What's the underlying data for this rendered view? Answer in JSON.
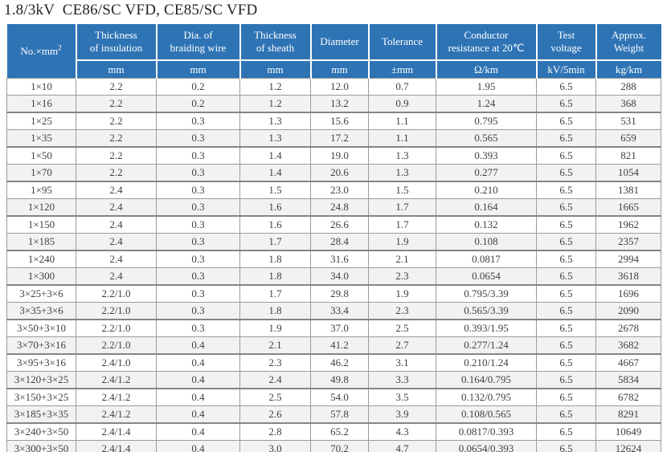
{
  "page": {
    "title": "1.8/3kV  CE86/SC VFD, CE85/SC VFD"
  },
  "colors": {
    "header_bg": "#2e74b5",
    "header_text": "#ffffff",
    "row_alt_bg": "#f2f2f2",
    "border": "#9b9b9b",
    "body_text": "#3f3f3f"
  },
  "table": {
    "header": {
      "spec_label": "No.×mm",
      "spec_sup": "2",
      "columns": [
        {
          "line1": "Thickness",
          "line2": "of insulation",
          "unit": "mm"
        },
        {
          "line1": "Dia. of",
          "line2": "braiding wire",
          "unit": "mm"
        },
        {
          "line1": "Thickness",
          "line2": "of sheath",
          "unit": "mm"
        },
        {
          "line1": "Diameter",
          "line2": "",
          "unit": "mm"
        },
        {
          "line1": "Tolerance",
          "line2": "",
          "unit": "±mm"
        },
        {
          "line1": "Conductor",
          "line2": "resistance at 20℃",
          "unit": "Ω/km"
        },
        {
          "line1": "Test",
          "line2": "voltage",
          "unit": "kV/5min"
        },
        {
          "line1": "Approx.",
          "line2": "Weight",
          "unit": "kg/km"
        }
      ]
    },
    "rows": [
      [
        "1×10",
        "2.2",
        "0.2",
        "1.2",
        "12.0",
        "0.7",
        "1.95",
        "6.5",
        "288"
      ],
      [
        "1×16",
        "2.2",
        "0.2",
        "1.2",
        "13.2",
        "0.9",
        "1.24",
        "6.5",
        "368"
      ],
      [
        "1×25",
        "2.2",
        "0.3",
        "1.3",
        "15.6",
        "1.1",
        "0.795",
        "6.5",
        "531"
      ],
      [
        "1×35",
        "2.2",
        "0.3",
        "1.3",
        "17.2",
        "1.1",
        "0.565",
        "6.5",
        "659"
      ],
      [
        "1×50",
        "2.2",
        "0.3",
        "1.4",
        "19.0",
        "1.3",
        "0.393",
        "6.5",
        "821"
      ],
      [
        "1×70",
        "2.2",
        "0.3",
        "1.4",
        "20.6",
        "1.3",
        "0.277",
        "6.5",
        "1054"
      ],
      [
        "1×95",
        "2.4",
        "0.3",
        "1.5",
        "23.0",
        "1.5",
        "0.210",
        "6.5",
        "1381"
      ],
      [
        "1×120",
        "2.4",
        "0.3",
        "1.6",
        "24.8",
        "1.7",
        "0.164",
        "6.5",
        "1665"
      ],
      [
        "1×150",
        "2.4",
        "0.3",
        "1.6",
        "26.6",
        "1.7",
        "0.132",
        "6.5",
        "1962"
      ],
      [
        "1×185",
        "2.4",
        "0.3",
        "1.7",
        "28.4",
        "1.9",
        "0.108",
        "6.5",
        "2357"
      ],
      [
        "1×240",
        "2.4",
        "0.3",
        "1.8",
        "31.6",
        "2.1",
        "0.0817",
        "6.5",
        "2994"
      ],
      [
        "1×300",
        "2.4",
        "0.3",
        "1.8",
        "34.0",
        "2.3",
        "0.0654",
        "6.5",
        "3618"
      ],
      [
        "3×25+3×6",
        "2.2/1.0",
        "0.3",
        "1.7",
        "29.8",
        "1.9",
        "0.795/3.39",
        "6.5",
        "1696"
      ],
      [
        "3×35+3×6",
        "2.2/1.0",
        "0.3",
        "1.8",
        "33.4",
        "2.3",
        "0.565/3.39",
        "6.5",
        "2090"
      ],
      [
        "3×50+3×10",
        "2.2/1.0",
        "0.3",
        "1.9",
        "37.0",
        "2.5",
        "0.393/1.95",
        "6.5",
        "2678"
      ],
      [
        "3×70+3×16",
        "2.2/1.0",
        "0.4",
        "2.1",
        "41.2",
        "2.7",
        "0.277/1.24",
        "6.5",
        "3682"
      ],
      [
        "3×95+3×16",
        "2.4/1.0",
        "0.4",
        "2.3",
        "46.2",
        "3.1",
        "0.210/1.24",
        "6.5",
        "4667"
      ],
      [
        "3×120+3×25",
        "2.4/1.2",
        "0.4",
        "2.4",
        "49.8",
        "3.3",
        "0.164/0.795",
        "6.5",
        "5834"
      ],
      [
        "3×150+3×25",
        "2.4/1.2",
        "0.4",
        "2.5",
        "54.0",
        "3.5",
        "0.132/0.795",
        "6.5",
        "6782"
      ],
      [
        "3×185+3×35",
        "2.4/1.2",
        "0.4",
        "2.6",
        "57.8",
        "3.9",
        "0.108/0.565",
        "6.5",
        "8291"
      ],
      [
        "3×240+3×50",
        "2.4/1.4",
        "0.4",
        "2.8",
        "65.2",
        "4.3",
        "0.0817/0.393",
        "6.5",
        "10649"
      ],
      [
        "3×300+3×50",
        "2.4/1.4",
        "0.4",
        "3.0",
        "70.2",
        "4.7",
        "0.0654/0.393",
        "6.5",
        "12624"
      ]
    ]
  }
}
